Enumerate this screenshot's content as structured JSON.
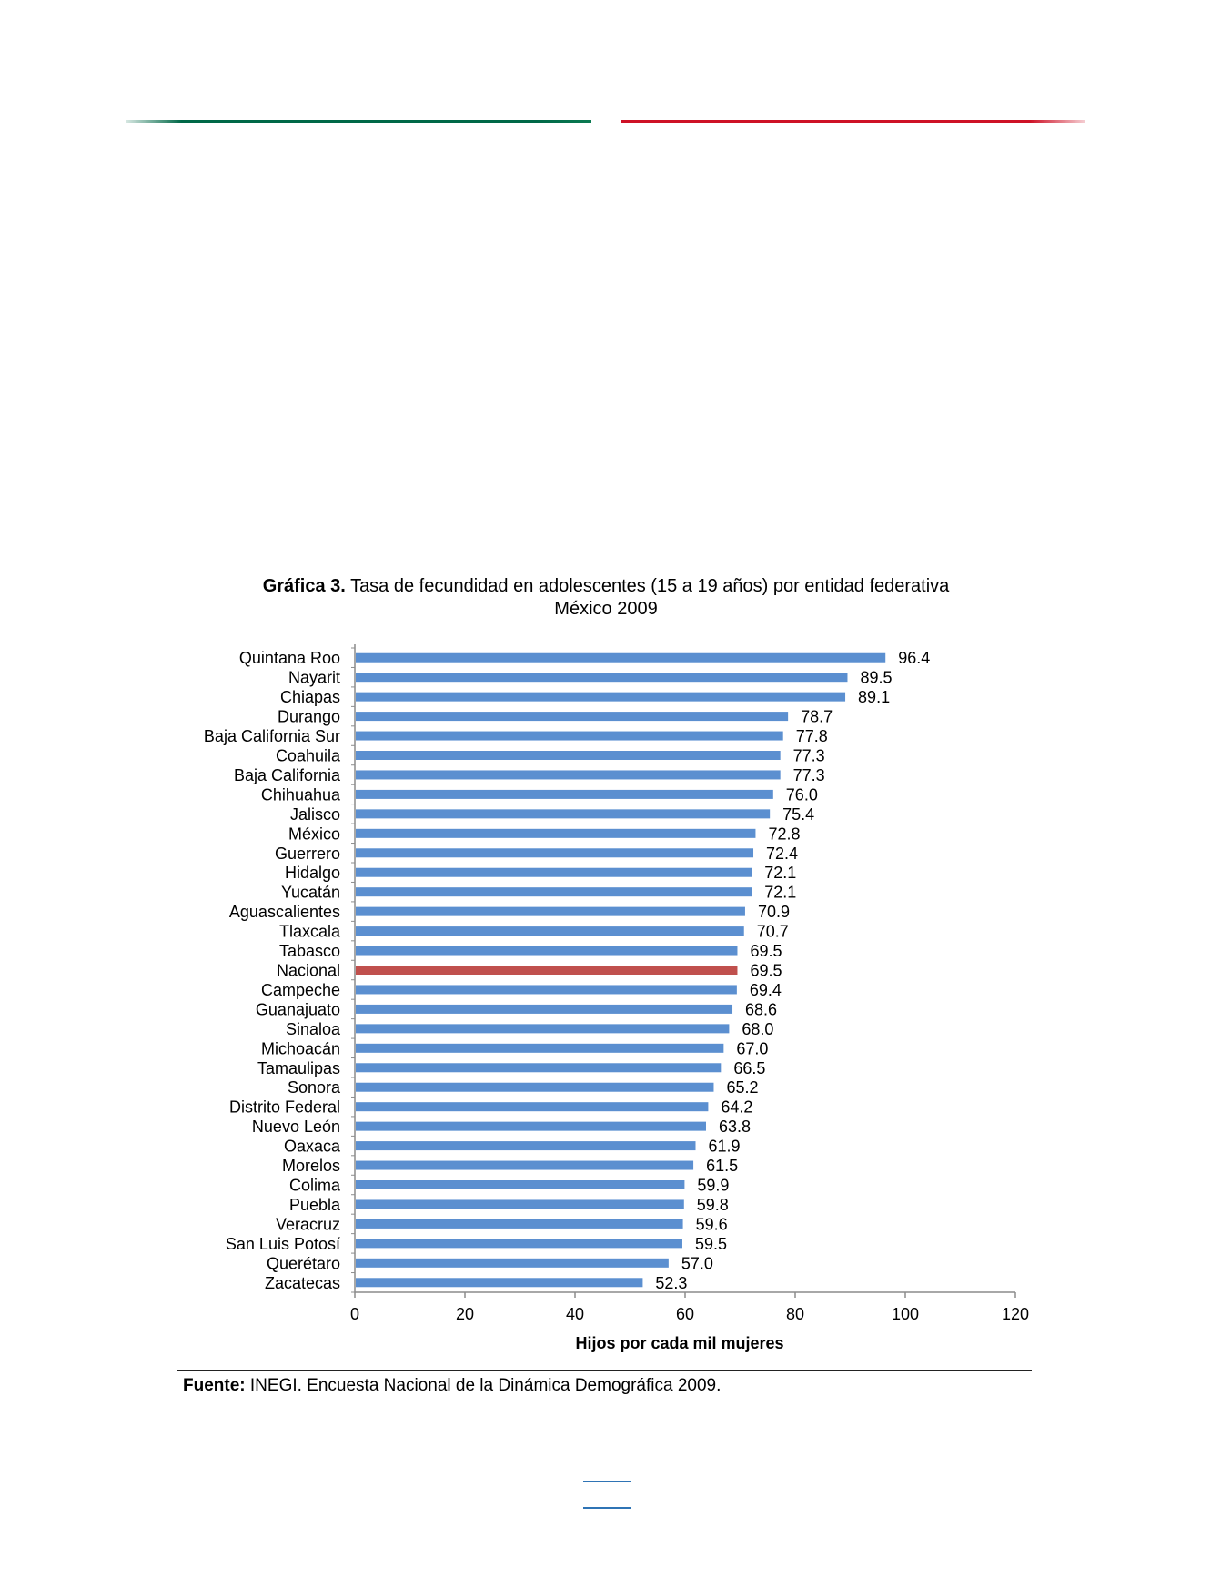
{
  "chart_title": {
    "label": "Gráfica 3.",
    "text": "Tasa de fecundidad en adolescentes (15 a 19 años) por entidad federativa",
    "subtitle": "México 2009"
  },
  "colors": {
    "bar": "#5b8fd0",
    "highlight_bar": "#c0504d",
    "flag_green": "#006847",
    "flag_red": "#ce1126"
  },
  "chart_data": {
    "type": "bar",
    "orientation": "horizontal",
    "categories": [
      "Quintana Roo",
      "Nayarit",
      "Chiapas",
      "Durango",
      "Baja California Sur",
      "Coahuila",
      "Baja California",
      "Chihuahua",
      "Jalisco",
      "México",
      "Guerrero",
      "Hidalgo",
      "Yucatán",
      "Aguascalientes",
      "Tlaxcala",
      "Tabasco",
      "Nacional",
      "Campeche",
      "Guanajuato",
      "Sinaloa",
      "Michoacán",
      "Tamaulipas",
      "Sonora",
      "Distrito Federal",
      "Nuevo León",
      "Oaxaca",
      "Morelos",
      "Colima",
      "Puebla",
      "Veracruz",
      "San Luis Potosí",
      "Querétaro",
      "Zacatecas"
    ],
    "values": [
      96.4,
      89.5,
      89.1,
      78.7,
      77.8,
      77.3,
      77.3,
      76.0,
      75.4,
      72.8,
      72.4,
      72.1,
      72.1,
      70.9,
      70.7,
      69.5,
      69.5,
      69.4,
      68.6,
      68.0,
      67.0,
      66.5,
      65.2,
      64.2,
      63.8,
      61.9,
      61.5,
      59.9,
      59.8,
      59.6,
      59.5,
      57.0,
      52.3
    ],
    "value_labels": [
      "96.4",
      "89.5",
      "89.1",
      "78.7",
      "77.8",
      "77.3",
      "77.3",
      "76.0",
      "75.4",
      "72.8",
      "72.4",
      "72.1",
      "72.1",
      "70.9",
      "70.7",
      "69.5",
      "69.5",
      "69.4",
      "68.6",
      "68.0",
      "67.0",
      "66.5",
      "65.2",
      "64.2",
      "63.8",
      "61.9",
      "61.5",
      "59.9",
      "59.8",
      "59.6",
      "59.5",
      "57.0",
      "52.3"
    ],
    "highlight_category": "Nacional",
    "xlabel": "Hijos por cada mil mujeres",
    "xlim": [
      0,
      120
    ],
    "xticks": [
      "0",
      "20",
      "40",
      "60",
      "80",
      "100",
      "120"
    ],
    "grid": false,
    "legend": "none"
  },
  "source": {
    "label": "Fuente:",
    "text": "INEGI. Encuesta Nacional de la Dinámica Demográfica 2009."
  }
}
